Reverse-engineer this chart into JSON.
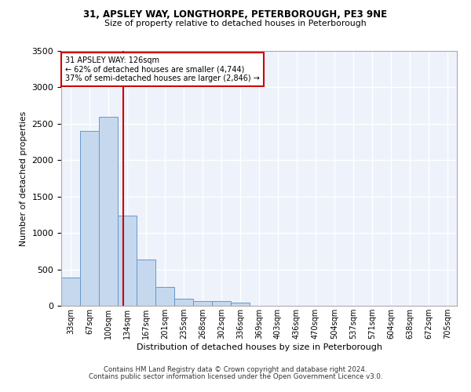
{
  "title_line1": "31, APSLEY WAY, LONGTHORPE, PETERBOROUGH, PE3 9NE",
  "title_line2": "Size of property relative to detached houses in Peterborough",
  "xlabel": "Distribution of detached houses by size in Peterborough",
  "ylabel": "Number of detached properties",
  "footer_line1": "Contains HM Land Registry data © Crown copyright and database right 2024.",
  "footer_line2": "Contains public sector information licensed under the Open Government Licence v3.0.",
  "annotation_title": "31 APSLEY WAY: 126sqm",
  "annotation_line1": "← 62% of detached houses are smaller (4,744)",
  "annotation_line2": "37% of semi-detached houses are larger (2,846) →",
  "property_sqm": 126,
  "bar_categories": [
    "33sqm",
    "67sqm",
    "100sqm",
    "134sqm",
    "167sqm",
    "201sqm",
    "235sqm",
    "268sqm",
    "302sqm",
    "336sqm",
    "369sqm",
    "403sqm",
    "436sqm",
    "470sqm",
    "504sqm",
    "537sqm",
    "571sqm",
    "604sqm",
    "638sqm",
    "672sqm",
    "705sqm"
  ],
  "bar_values": [
    390,
    2400,
    2600,
    1240,
    640,
    260,
    100,
    65,
    60,
    40,
    0,
    0,
    0,
    0,
    0,
    0,
    0,
    0,
    0,
    0,
    0
  ],
  "bar_color": "#c5d8ee",
  "bar_edge_color": "#6699cc",
  "vline_color": "#cc0000",
  "ylim": [
    0,
    3500
  ],
  "yticks": [
    0,
    500,
    1000,
    1500,
    2000,
    2500,
    3000,
    3500
  ],
  "bg_color": "#eef2fb",
  "grid_color": "#ffffff",
  "annotation_box_color": "#ffffff",
  "annotation_box_edge": "#cc0000"
}
